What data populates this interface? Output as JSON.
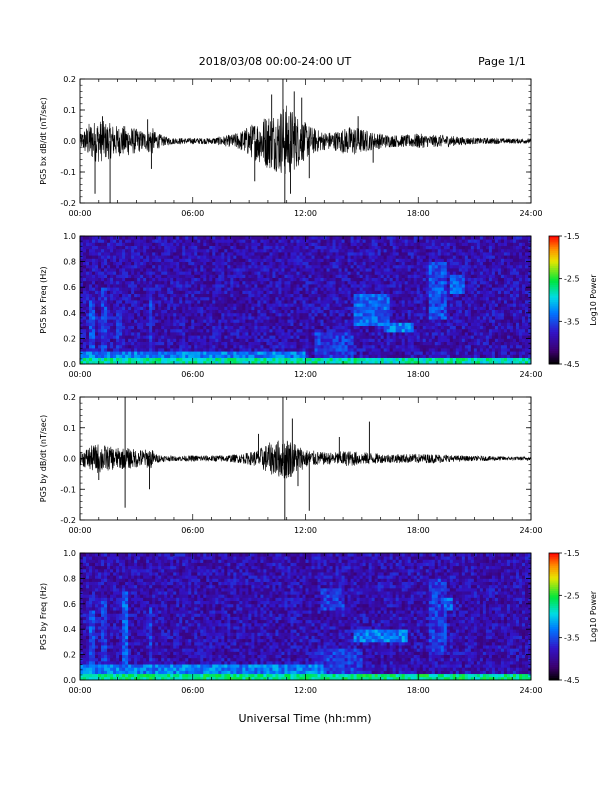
{
  "header": {
    "title": "2018/03/08  00:00-24:00 UT",
    "page": "Page 1/1"
  },
  "footer": {
    "xlabel": "Universal Time (hh:mm)"
  },
  "chart_data": [
    {
      "type": "line",
      "ylabel": "PG5 bx dB/dt (nT/sec)",
      "xlim": [
        "00:00",
        "24:00"
      ],
      "ylim": [
        -0.2,
        0.2
      ],
      "x_ticks": [
        "00:00",
        "06:00",
        "12:00",
        "18:00",
        "24:00"
      ],
      "y_ticks": [
        "-0.2",
        "-0.1",
        "0.0",
        "0.1",
        "0.2"
      ],
      "envelope": {
        "x_hours": [
          0,
          0.5,
          1,
          1.5,
          2,
          2.5,
          3,
          3.5,
          3.8,
          4,
          4.5,
          5,
          6,
          7,
          8,
          8.5,
          9,
          9.5,
          10,
          10.5,
          11,
          11.5,
          12,
          12.5,
          13,
          13.5,
          14,
          14.5,
          15,
          15.5,
          16,
          16.5,
          17,
          17.5,
          18,
          18.5,
          19,
          19.5,
          20,
          21,
          22,
          23,
          24
        ],
        "amplitude": [
          0.02,
          0.06,
          0.07,
          0.06,
          0.05,
          0.05,
          0.04,
          0.03,
          0.05,
          0.03,
          0.015,
          0.01,
          0.01,
          0.01,
          0.02,
          0.03,
          0.05,
          0.07,
          0.09,
          0.1,
          0.12,
          0.09,
          0.06,
          0.04,
          0.03,
          0.03,
          0.04,
          0.05,
          0.04,
          0.03,
          0.025,
          0.02,
          0.02,
          0.02,
          0.025,
          0.02,
          0.02,
          0.02,
          0.015,
          0.01,
          0.01,
          0.008,
          0.008
        ]
      },
      "spikes": [
        {
          "x": 0.8,
          "y": -0.17
        },
        {
          "x": 1.6,
          "y": -0.2
        },
        {
          "x": 1.2,
          "y": 0.08
        },
        {
          "x": 3.6,
          "y": 0.07
        },
        {
          "x": 3.8,
          "y": -0.09
        },
        {
          "x": 9.3,
          "y": -0.13
        },
        {
          "x": 10.2,
          "y": 0.15
        },
        {
          "x": 10.8,
          "y": 0.2
        },
        {
          "x": 10.9,
          "y": -0.2
        },
        {
          "x": 11.4,
          "y": 0.16
        },
        {
          "x": 11.2,
          "y": -0.17
        },
        {
          "x": 12.2,
          "y": -0.12
        },
        {
          "x": 11.8,
          "y": 0.14
        },
        {
          "x": 14.8,
          "y": 0.08
        },
        {
          "x": 15.6,
          "y": -0.07
        }
      ]
    },
    {
      "type": "heatmap",
      "ylabel": "PG5 bx Freq (Hz)",
      "xlim": [
        "00:00",
        "24:00"
      ],
      "ylim": [
        0.0,
        1.0
      ],
      "x_ticks": [
        "00:00",
        "06:00",
        "12:00",
        "18:00",
        "24:00"
      ],
      "y_ticks": [
        "0.0",
        "0.2",
        "0.4",
        "0.6",
        "0.8",
        "1.0"
      ],
      "colorbar": {
        "label": "Log10 Power",
        "min": -4.5,
        "max": -1.5,
        "ticks": [
          "-1.5",
          "-2.5",
          "-3.5",
          "-4.5"
        ]
      },
      "features": [
        {
          "x_hours": [
            0,
            24
          ],
          "freq_hz": [
            0.0,
            0.04
          ],
          "log_power": -2.8
        },
        {
          "x_hours": [
            0,
            12
          ],
          "freq_hz": [
            0.04,
            0.1
          ],
          "log_power": -3.3
        },
        {
          "x_hours": [
            0.5,
            0.8
          ],
          "freq_hz": [
            0.0,
            0.5
          ],
          "log_power": -3.5
        },
        {
          "x_hours": [
            1.2,
            1.5
          ],
          "freq_hz": [
            0.0,
            0.6
          ],
          "log_power": -3.6
        },
        {
          "x_hours": [
            2.0,
            2.3
          ],
          "freq_hz": [
            0.0,
            0.45
          ],
          "log_power": -3.7
        },
        {
          "x_hours": [
            3.6,
            3.9
          ],
          "freq_hz": [
            0.0,
            0.55
          ],
          "log_power": -3.6
        },
        {
          "x_hours": [
            12.5,
            14.5
          ],
          "freq_hz": [
            0.05,
            0.25
          ],
          "log_power": -3.6
        },
        {
          "x_hours": [
            14.5,
            16.5
          ],
          "freq_hz": [
            0.3,
            0.55
          ],
          "log_power": -3.4
        },
        {
          "x_hours": [
            16.2,
            17.8
          ],
          "freq_hz": [
            0.25,
            0.32
          ],
          "log_power": -3.3
        },
        {
          "x_hours": [
            18.5,
            19.5
          ],
          "freq_hz": [
            0.35,
            0.8
          ],
          "log_power": -3.5
        },
        {
          "x_hours": [
            19.7,
            20.4
          ],
          "freq_hz": [
            0.55,
            0.7
          ],
          "log_power": -3.4
        }
      ]
    },
    {
      "type": "line",
      "ylabel": "PG5 by dB/dt (nT/sec)",
      "xlim": [
        "00:00",
        "24:00"
      ],
      "ylim": [
        -0.2,
        0.2
      ],
      "x_ticks": [
        "00:00",
        "06:00",
        "12:00",
        "18:00",
        "24:00"
      ],
      "y_ticks": [
        "-0.2",
        "-0.1",
        "0.0",
        "0.1",
        "0.2"
      ],
      "envelope": {
        "x_hours": [
          0,
          0.5,
          1,
          1.5,
          2,
          2.5,
          3,
          3.5,
          3.8,
          4,
          4.5,
          5,
          6,
          7,
          8,
          8.5,
          9,
          9.5,
          10,
          10.5,
          11,
          11.5,
          12,
          12.5,
          13,
          13.5,
          14,
          14.5,
          15,
          15.5,
          16,
          16.5,
          17,
          17.5,
          18,
          18.5,
          19,
          19.5,
          20,
          21,
          22,
          23,
          24
        ],
        "amplitude": [
          0.02,
          0.04,
          0.05,
          0.04,
          0.035,
          0.035,
          0.03,
          0.03,
          0.035,
          0.015,
          0.01,
          0.008,
          0.01,
          0.01,
          0.012,
          0.015,
          0.02,
          0.03,
          0.05,
          0.06,
          0.07,
          0.05,
          0.03,
          0.025,
          0.02,
          0.02,
          0.025,
          0.025,
          0.02,
          0.02,
          0.015,
          0.015,
          0.015,
          0.015,
          0.015,
          0.015,
          0.015,
          0.012,
          0.01,
          0.008,
          0.008,
          0.006,
          0.006
        ]
      },
      "spikes": [
        {
          "x": 1.0,
          "y": -0.07
        },
        {
          "x": 2.4,
          "y": 0.2
        },
        {
          "x": 2.4,
          "y": -0.16
        },
        {
          "x": 3.7,
          "y": -0.1
        },
        {
          "x": 9.5,
          "y": 0.08
        },
        {
          "x": 10.8,
          "y": 0.2
        },
        {
          "x": 10.9,
          "y": -0.2
        },
        {
          "x": 11.3,
          "y": 0.13
        },
        {
          "x": 12.2,
          "y": -0.17
        },
        {
          "x": 11.6,
          "y": -0.09
        },
        {
          "x": 13.8,
          "y": 0.07
        },
        {
          "x": 15.4,
          "y": 0.12
        }
      ]
    },
    {
      "type": "heatmap",
      "ylabel": "PG5 by Freq (Hz)",
      "xlim": [
        "00:00",
        "24:00"
      ],
      "ylim": [
        0.0,
        1.0
      ],
      "x_ticks": [
        "00:00",
        "06:00",
        "12:00",
        "18:00",
        "24:00"
      ],
      "y_ticks": [
        "0.0",
        "0.2",
        "0.4",
        "0.6",
        "0.8",
        "1.0"
      ],
      "colorbar": {
        "label": "Log10 Power",
        "min": -4.5,
        "max": -1.5,
        "ticks": [
          "-1.5",
          "-2.5",
          "-3.5",
          "-4.5"
        ]
      },
      "features": [
        {
          "x_hours": [
            0,
            24
          ],
          "freq_hz": [
            0.0,
            0.05
          ],
          "log_power": -2.7
        },
        {
          "x_hours": [
            0,
            13
          ],
          "freq_hz": [
            0.05,
            0.12
          ],
          "log_power": -3.3
        },
        {
          "x_hours": [
            0.5,
            0.8
          ],
          "freq_hz": [
            0.0,
            0.55
          ],
          "log_power": -3.5
        },
        {
          "x_hours": [
            1.2,
            1.5
          ],
          "freq_hz": [
            0.0,
            0.65
          ],
          "log_power": -3.6
        },
        {
          "x_hours": [
            2.2,
            2.5
          ],
          "freq_hz": [
            0.0,
            0.7
          ],
          "log_power": -3.4
        },
        {
          "x_hours": [
            3.6,
            3.9
          ],
          "freq_hz": [
            0.0,
            0.6
          ],
          "log_power": -3.6
        },
        {
          "x_hours": [
            12.8,
            14.0
          ],
          "freq_hz": [
            0.55,
            0.72
          ],
          "log_power": -3.6
        },
        {
          "x_hours": [
            12.5,
            15.0
          ],
          "freq_hz": [
            0.05,
            0.25
          ],
          "log_power": -3.6
        },
        {
          "x_hours": [
            14.5,
            17.5
          ],
          "freq_hz": [
            0.3,
            0.4
          ],
          "log_power": -3.3
        },
        {
          "x_hours": [
            18.5,
            19.5
          ],
          "freq_hz": [
            0.2,
            0.8
          ],
          "log_power": -3.6
        },
        {
          "x_hours": [
            19.4,
            19.9
          ],
          "freq_hz": [
            0.55,
            0.65
          ],
          "log_power": -3.4
        }
      ]
    }
  ]
}
